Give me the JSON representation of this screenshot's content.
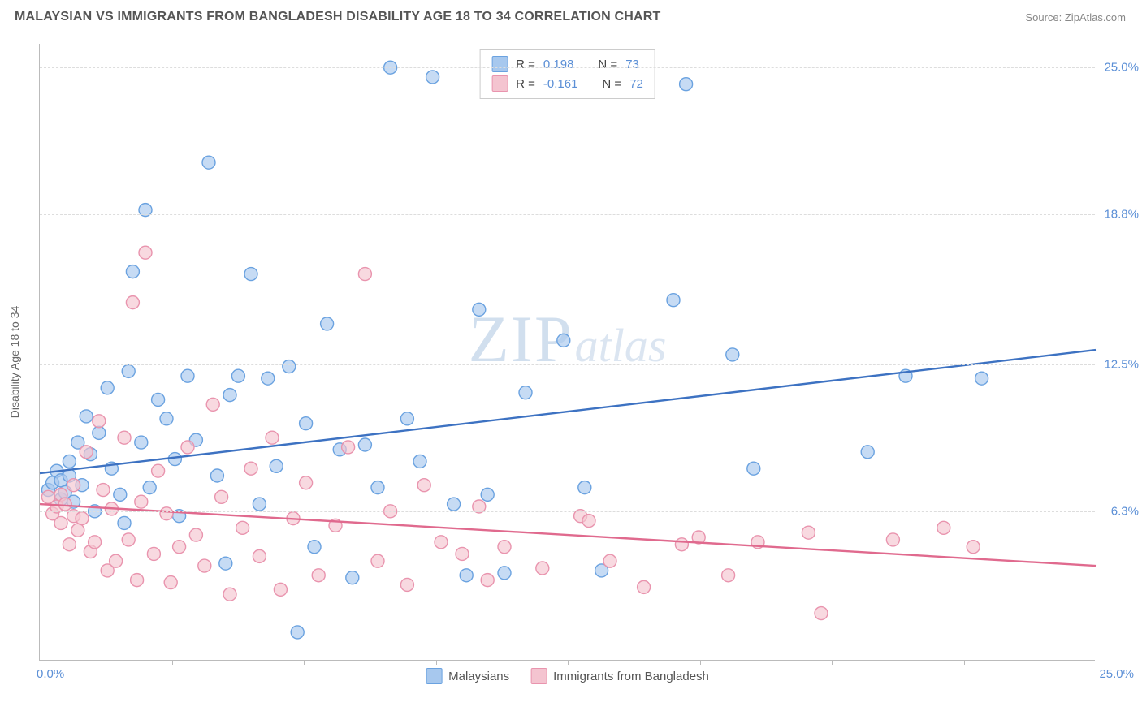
{
  "header": {
    "title": "MALAYSIAN VS IMMIGRANTS FROM BANGLADESH DISABILITY AGE 18 TO 34 CORRELATION CHART",
    "source_label": "Source: ",
    "source_value": "ZipAtlas.com"
  },
  "watermark": {
    "left": "ZIP",
    "right": "atlas"
  },
  "chart": {
    "type": "scatter",
    "y_axis_title": "Disability Age 18 to 34",
    "xlim": [
      0,
      25
    ],
    "ylim": [
      0,
      26
    ],
    "x_origin": "0.0%",
    "x_max": "25.0%",
    "y_ticks": [
      {
        "v": 6.3,
        "label": "6.3%"
      },
      {
        "v": 12.5,
        "label": "12.5%"
      },
      {
        "v": 18.8,
        "label": "18.8%"
      },
      {
        "v": 25.0,
        "label": "25.0%"
      }
    ],
    "x_tick_positions": [
      3.125,
      6.25,
      9.375,
      12.5,
      15.625,
      18.75,
      21.875
    ],
    "grid_color": "#dddddd",
    "axis_color": "#bbbbbb",
    "background_color": "#ffffff",
    "marker_radius": 8,
    "marker_stroke_width": 1.4,
    "trend_line_width": 2.4,
    "series": [
      {
        "name": "Malaysians",
        "fill": "#a7c8ee",
        "stroke": "#6aa2e0",
        "line_color": "#3d72c2",
        "R": "0.198",
        "N": "73",
        "trend": {
          "x1": 0,
          "y1": 7.9,
          "x2": 25,
          "y2": 13.1
        },
        "points": [
          [
            0.2,
            7.2
          ],
          [
            0.3,
            7.5
          ],
          [
            0.4,
            8.0
          ],
          [
            0.5,
            6.8
          ],
          [
            0.5,
            7.6
          ],
          [
            0.6,
            7.1
          ],
          [
            0.7,
            8.4
          ],
          [
            0.7,
            7.8
          ],
          [
            0.8,
            6.7
          ],
          [
            0.9,
            9.2
          ],
          [
            1.0,
            7.4
          ],
          [
            1.1,
            10.3
          ],
          [
            1.2,
            8.7
          ],
          [
            1.3,
            6.3
          ],
          [
            1.4,
            9.6
          ],
          [
            1.6,
            11.5
          ],
          [
            1.7,
            8.1
          ],
          [
            1.9,
            7.0
          ],
          [
            2.0,
            5.8
          ],
          [
            2.1,
            12.2
          ],
          [
            2.2,
            16.4
          ],
          [
            2.4,
            9.2
          ],
          [
            2.5,
            19.0
          ],
          [
            2.6,
            7.3
          ],
          [
            2.8,
            11.0
          ],
          [
            3.0,
            10.2
          ],
          [
            3.2,
            8.5
          ],
          [
            3.3,
            6.1
          ],
          [
            3.5,
            12.0
          ],
          [
            3.7,
            9.3
          ],
          [
            4.0,
            21.0
          ],
          [
            4.2,
            7.8
          ],
          [
            4.4,
            4.1
          ],
          [
            4.5,
            11.2
          ],
          [
            4.7,
            12.0
          ],
          [
            5.0,
            16.3
          ],
          [
            5.2,
            6.6
          ],
          [
            5.4,
            11.9
          ],
          [
            5.6,
            8.2
          ],
          [
            5.9,
            12.4
          ],
          [
            6.1,
            1.2
          ],
          [
            6.3,
            10.0
          ],
          [
            6.5,
            4.8
          ],
          [
            6.8,
            14.2
          ],
          [
            7.1,
            8.9
          ],
          [
            7.4,
            3.5
          ],
          [
            7.7,
            9.1
          ],
          [
            8.0,
            7.3
          ],
          [
            8.3,
            25.0
          ],
          [
            8.7,
            10.2
          ],
          [
            9.0,
            8.4
          ],
          [
            9.3,
            24.6
          ],
          [
            9.8,
            6.6
          ],
          [
            10.1,
            3.6
          ],
          [
            10.4,
            14.8
          ],
          [
            10.6,
            7.0
          ],
          [
            11.0,
            3.7
          ],
          [
            11.5,
            11.3
          ],
          [
            12.4,
            13.5
          ],
          [
            12.9,
            7.3
          ],
          [
            13.3,
            3.8
          ],
          [
            15.0,
            15.2
          ],
          [
            15.3,
            24.3
          ],
          [
            16.4,
            12.9
          ],
          [
            16.9,
            8.1
          ],
          [
            19.6,
            8.8
          ],
          [
            20.5,
            12.0
          ],
          [
            22.3,
            11.9
          ]
        ]
      },
      {
        "name": "Immigrants from Bangladesh",
        "fill": "#f4c4d0",
        "stroke": "#e994ae",
        "line_color": "#e06a8e",
        "R": "-0.161",
        "N": "72",
        "trend": {
          "x1": 0,
          "y1": 6.6,
          "x2": 25,
          "y2": 4.0
        },
        "points": [
          [
            0.2,
            6.9
          ],
          [
            0.3,
            6.2
          ],
          [
            0.4,
            6.5
          ],
          [
            0.5,
            5.8
          ],
          [
            0.5,
            7.0
          ],
          [
            0.6,
            6.6
          ],
          [
            0.7,
            4.9
          ],
          [
            0.8,
            6.1
          ],
          [
            0.8,
            7.4
          ],
          [
            0.9,
            5.5
          ],
          [
            1.0,
            6.0
          ],
          [
            1.1,
            8.8
          ],
          [
            1.2,
            4.6
          ],
          [
            1.3,
            5.0
          ],
          [
            1.4,
            10.1
          ],
          [
            1.5,
            7.2
          ],
          [
            1.6,
            3.8
          ],
          [
            1.7,
            6.4
          ],
          [
            1.8,
            4.2
          ],
          [
            2.0,
            9.4
          ],
          [
            2.1,
            5.1
          ],
          [
            2.2,
            15.1
          ],
          [
            2.3,
            3.4
          ],
          [
            2.4,
            6.7
          ],
          [
            2.5,
            17.2
          ],
          [
            2.7,
            4.5
          ],
          [
            2.8,
            8.0
          ],
          [
            3.0,
            6.2
          ],
          [
            3.1,
            3.3
          ],
          [
            3.3,
            4.8
          ],
          [
            3.5,
            9.0
          ],
          [
            3.7,
            5.3
          ],
          [
            3.9,
            4.0
          ],
          [
            4.1,
            10.8
          ],
          [
            4.3,
            6.9
          ],
          [
            4.5,
            2.8
          ],
          [
            4.8,
            5.6
          ],
          [
            5.0,
            8.1
          ],
          [
            5.2,
            4.4
          ],
          [
            5.5,
            9.4
          ],
          [
            5.7,
            3.0
          ],
          [
            6.0,
            6.0
          ],
          [
            6.3,
            7.5
          ],
          [
            6.6,
            3.6
          ],
          [
            7.0,
            5.7
          ],
          [
            7.3,
            9.0
          ],
          [
            7.7,
            16.3
          ],
          [
            8.0,
            4.2
          ],
          [
            8.3,
            6.3
          ],
          [
            8.7,
            3.2
          ],
          [
            9.1,
            7.4
          ],
          [
            9.5,
            5.0
          ],
          [
            10.0,
            4.5
          ],
          [
            10.4,
            6.5
          ],
          [
            10.6,
            3.4
          ],
          [
            11.0,
            4.8
          ],
          [
            11.9,
            3.9
          ],
          [
            12.8,
            6.1
          ],
          [
            13.0,
            5.9
          ],
          [
            13.5,
            4.2
          ],
          [
            14.3,
            3.1
          ],
          [
            15.2,
            4.9
          ],
          [
            15.6,
            5.2
          ],
          [
            16.3,
            3.6
          ],
          [
            17.0,
            5.0
          ],
          [
            18.2,
            5.4
          ],
          [
            18.5,
            2.0
          ],
          [
            20.2,
            5.1
          ],
          [
            21.4,
            5.6
          ],
          [
            22.1,
            4.8
          ]
        ]
      }
    ]
  },
  "legend_box": {
    "r_label": "R =",
    "n_label": "N ="
  },
  "bottom_legend": {
    "items": [
      "Malaysians",
      "Immigrants from Bangladesh"
    ]
  }
}
